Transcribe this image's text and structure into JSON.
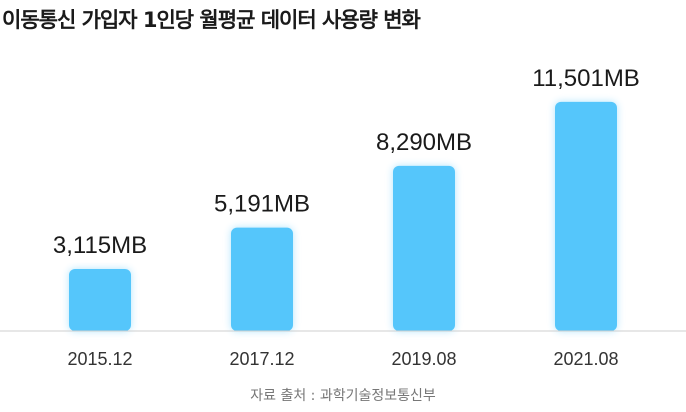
{
  "chart_data": {
    "type": "bar",
    "title": "이동통신 가입자 1인당 월평균 데이터 사용량 변화",
    "categories": [
      "2015.12",
      "2017.12",
      "2019.08",
      "2021.08"
    ],
    "values": [
      3115,
      5191,
      8290,
      11501
    ],
    "data_labels": [
      "3,115MB",
      "5,191MB",
      "8,290MB",
      "11,501MB"
    ],
    "unit": "MB",
    "xlabel": "",
    "ylabel": "",
    "ylim": [
      0,
      12500
    ],
    "grid": false,
    "legend": "none",
    "bar_color": "#55c6fb",
    "axis_color": "#cfcfcf"
  },
  "source": "자료 출처 : 과학기술정보통신부"
}
